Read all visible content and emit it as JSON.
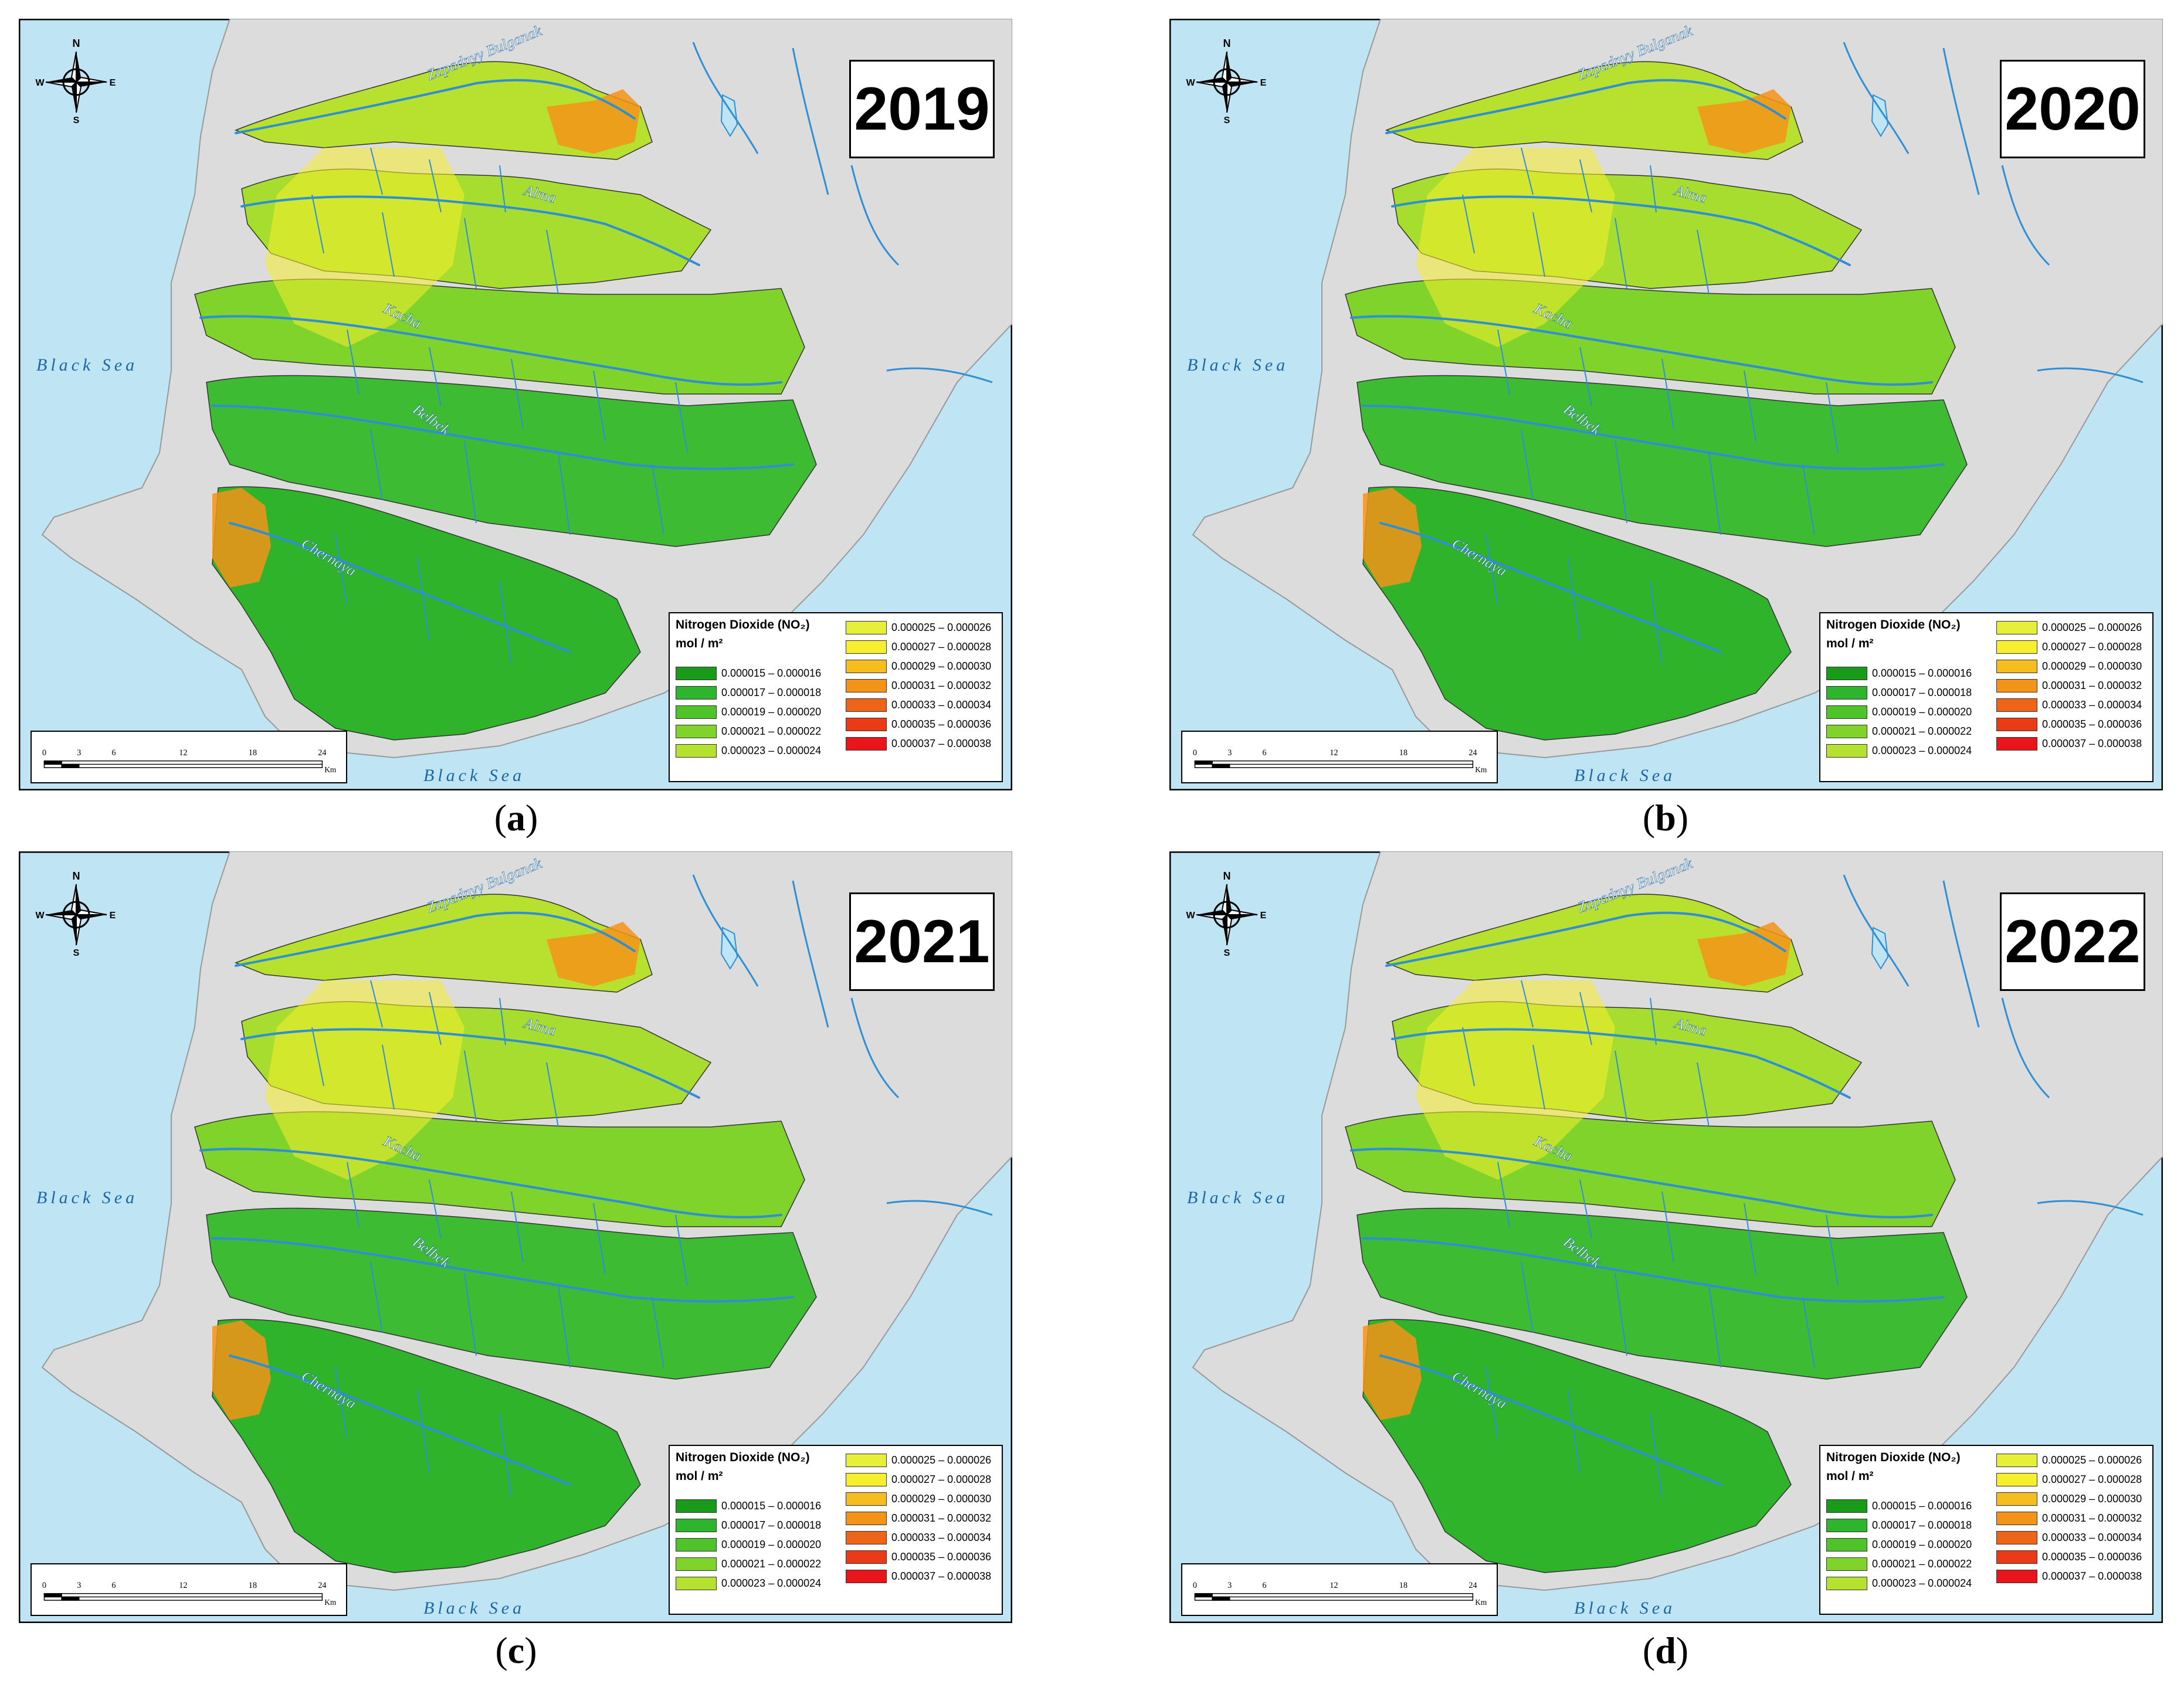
{
  "panels": [
    {
      "year": "2019",
      "label": "a"
    },
    {
      "year": "2020",
      "label": "b"
    },
    {
      "year": "2021",
      "label": "c"
    },
    {
      "year": "2022",
      "label": "d"
    }
  ],
  "legend": {
    "title": "Nitrogen Dioxide (NO₂)",
    "unit": "mol / m²",
    "classes": [
      {
        "range": "0.000015 – 0.000016",
        "color": "#1a9a1a"
      },
      {
        "range": "0.000017 – 0.000018",
        "color": "#2db52d"
      },
      {
        "range": "0.000019 – 0.000020",
        "color": "#4fc42a"
      },
      {
        "range": "0.000021 – 0.000022",
        "color": "#7fd32a"
      },
      {
        "range": "0.000023 – 0.000024",
        "color": "#b5e22e"
      },
      {
        "range": "0.000025 – 0.000026",
        "color": "#e6ef3a"
      },
      {
        "range": "0.000027 – 0.000028",
        "color": "#f7ef2e"
      },
      {
        "range": "0.000029 – 0.000030",
        "color": "#f6bd1e"
      },
      {
        "range": "0.000031 – 0.000032",
        "color": "#f39317"
      },
      {
        "range": "0.000033 – 0.000034",
        "color": "#ee6418"
      },
      {
        "range": "0.000035 – 0.000036",
        "color": "#eb3a16"
      },
      {
        "range": "0.000037 – 0.000038",
        "color": "#e8151a"
      }
    ]
  },
  "map_labels": {
    "sea_west": "Black Sea",
    "sea_south": "Black Sea",
    "rivers": [
      "Zapadnyy Bulganak",
      "Alma",
      "Kacha",
      "Belbek",
      "Chernaya"
    ]
  },
  "compass": {
    "n": "N",
    "s": "S",
    "e": "E",
    "w": "W"
  },
  "scale_bar": {
    "ticks": [
      "0",
      "3",
      "6",
      "12",
      "18",
      "24"
    ],
    "unit": "Km"
  },
  "colors": {
    "sea": "#bfe4f3",
    "land": "#dcdcdc",
    "river": "#2f8fd6",
    "basin_green": "#3dbb33"
  }
}
